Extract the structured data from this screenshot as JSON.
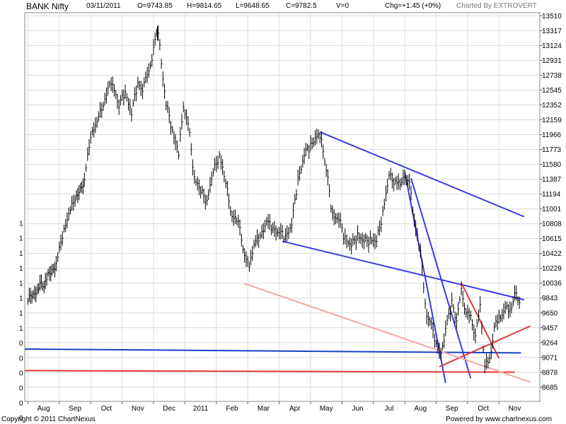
{
  "header": {
    "symbol": "BANK Nifty",
    "date": "03/11/2011",
    "open": "O=9743.85",
    "high": "H=9814.65",
    "low": "L=9648.65",
    "close": "C=9782.5",
    "volume": "V=0",
    "change": "Chg=+1.45 (+0%)",
    "credit": "Charted By EXTROVERT"
  },
  "footer": {
    "copyright": "Copyright © 2011 ChartNexus",
    "powered": "Powered by www.chartnexus.com"
  },
  "colors": {
    "price": "#000000",
    "trend_blue": "#3a3ae6",
    "support_blue": "#1a3fc8",
    "trend_red": "#e23a3a",
    "trend_pink": "#f4a6a6",
    "grid": "#dcdcdc"
  },
  "chart_data": {
    "type": "line",
    "title": "",
    "xlabel": "",
    "ylabel": "",
    "ylim": [
      8500,
      13550
    ],
    "y_ticks": [
      "13510",
      "13317",
      "13124",
      "12931",
      "12738",
      "12545",
      "12352",
      "12159",
      "11966",
      "11773",
      "11580",
      "11387",
      "11194",
      "11001",
      "10808",
      "10615",
      "10422",
      "10229",
      "10036",
      "9843",
      "9650",
      "9457",
      "9264",
      "9071",
      "8878",
      "8685"
    ],
    "left_ticks": [
      "1",
      "1",
      "1",
      "1",
      "1",
      "1",
      "1",
      "1",
      "0",
      "0",
      "0",
      "0",
      "0",
      "0",
      "0"
    ],
    "x_month_labels": [
      "Aug",
      "Sep",
      "Oct",
      "Nov",
      "Dec",
      "2011",
      "Feb",
      "Mar",
      "Apr",
      "May",
      "Jun",
      "Jul",
      "Aug",
      "Sep",
      "Oct",
      "Nov"
    ],
    "x_month_index": [
      1,
      2,
      3,
      4,
      5,
      6,
      7,
      8,
      9,
      10,
      11,
      12,
      13,
      14,
      15,
      16
    ],
    "grid": true,
    "series": [
      {
        "values": [
          [
            0.0,
            9800
          ],
          [
            0.3,
            9960
          ],
          [
            0.6,
            10080
          ],
          [
            0.9,
            10300
          ],
          [
            1.1,
            10600
          ],
          [
            1.3,
            10950
          ],
          [
            1.5,
            11080
          ],
          [
            1.8,
            11400
          ],
          [
            2.0,
            11900
          ],
          [
            2.2,
            12150
          ],
          [
            2.4,
            12300
          ],
          [
            2.6,
            12650
          ],
          [
            2.75,
            12500
          ],
          [
            2.9,
            12350
          ],
          [
            3.1,
            12480
          ],
          [
            3.3,
            12250
          ],
          [
            3.5,
            12600
          ],
          [
            3.65,
            12550
          ],
          [
            3.8,
            12700
          ],
          [
            3.95,
            12950
          ],
          [
            4.1,
            13250
          ],
          [
            4.15,
            13300
          ],
          [
            4.25,
            12850
          ],
          [
            4.4,
            12350
          ],
          [
            4.6,
            12000
          ],
          [
            4.8,
            11700
          ],
          [
            4.95,
            12300
          ],
          [
            5.1,
            12100
          ],
          [
            5.3,
            11400
          ],
          [
            5.5,
            11200
          ],
          [
            5.7,
            11100
          ],
          [
            5.9,
            11450
          ],
          [
            6.1,
            11700
          ],
          [
            6.3,
            11300
          ],
          [
            6.5,
            10900
          ],
          [
            6.7,
            10800
          ],
          [
            6.9,
            10400
          ],
          [
            7.05,
            10200
          ],
          [
            7.2,
            10550
          ],
          [
            7.4,
            10600
          ],
          [
            7.6,
            10850
          ],
          [
            7.8,
            10700
          ],
          [
            8.0,
            10700
          ],
          [
            8.2,
            10600
          ],
          [
            8.4,
            10800
          ],
          [
            8.6,
            11350
          ],
          [
            8.8,
            11700
          ],
          [
            9.0,
            11800
          ],
          [
            9.2,
            11950
          ],
          [
            9.35,
            11850
          ],
          [
            9.5,
            11500
          ],
          [
            9.7,
            10900
          ],
          [
            9.9,
            10850
          ],
          [
            10.1,
            10600
          ],
          [
            10.3,
            10500
          ],
          [
            10.5,
            10650
          ],
          [
            10.7,
            10550
          ],
          [
            10.9,
            10600
          ],
          [
            11.1,
            10550
          ],
          [
            11.3,
            10950
          ],
          [
            11.5,
            11400
          ],
          [
            11.7,
            11350
          ],
          [
            11.9,
            11300
          ],
          [
            12.0,
            11400
          ],
          [
            12.15,
            11300
          ],
          [
            12.3,
            10850
          ],
          [
            12.5,
            10400
          ],
          [
            12.7,
            9600
          ],
          [
            12.85,
            9450
          ],
          [
            13.0,
            9250
          ],
          [
            13.15,
            9050
          ],
          [
            13.3,
            9450
          ],
          [
            13.5,
            9750
          ],
          [
            13.65,
            9550
          ],
          [
            13.8,
            9900
          ],
          [
            13.95,
            9650
          ],
          [
            14.1,
            9550
          ],
          [
            14.25,
            9350
          ],
          [
            14.4,
            9700
          ],
          [
            14.55,
            8950
          ],
          [
            14.7,
            9000
          ],
          [
            14.85,
            9450
          ],
          [
            15.0,
            9550
          ],
          [
            15.2,
            9700
          ],
          [
            15.35,
            9650
          ],
          [
            15.5,
            9880
          ],
          [
            15.65,
            9782.5
          ]
        ]
      }
    ],
    "trendlines": [
      {
        "color": "#3a3ae6",
        "points": [
          [
            9.3,
            12000
          ],
          [
            15.8,
            10900
          ]
        ]
      },
      {
        "color": "#3a3ae6",
        "points": [
          [
            8.1,
            10580
          ],
          [
            15.8,
            9820
          ]
        ]
      },
      {
        "color": "#3a3ae6",
        "points": [
          [
            12.0,
            11480
          ],
          [
            13.3,
            8740
          ]
        ]
      },
      {
        "color": "#3a3ae6",
        "points": [
          [
            12.2,
            11400
          ],
          [
            14.1,
            8800
          ]
        ]
      },
      {
        "color": "#1a3fc8",
        "points": [
          [
            -0.1,
            9180
          ],
          [
            15.7,
            9130
          ]
        ]
      },
      {
        "color": "#e23a3a",
        "points": [
          [
            -0.1,
            8900
          ],
          [
            15.5,
            8880
          ]
        ]
      },
      {
        "color": "#e23a3a",
        "points": [
          [
            13.1,
            8950
          ],
          [
            16.0,
            9480
          ]
        ]
      },
      {
        "color": "#e23a3a",
        "points": [
          [
            13.8,
            10040
          ],
          [
            15.0,
            9060
          ]
        ]
      },
      {
        "color": "#f4a6a6",
        "points": [
          [
            6.9,
            10030
          ],
          [
            16.0,
            8750
          ]
        ]
      }
    ]
  }
}
